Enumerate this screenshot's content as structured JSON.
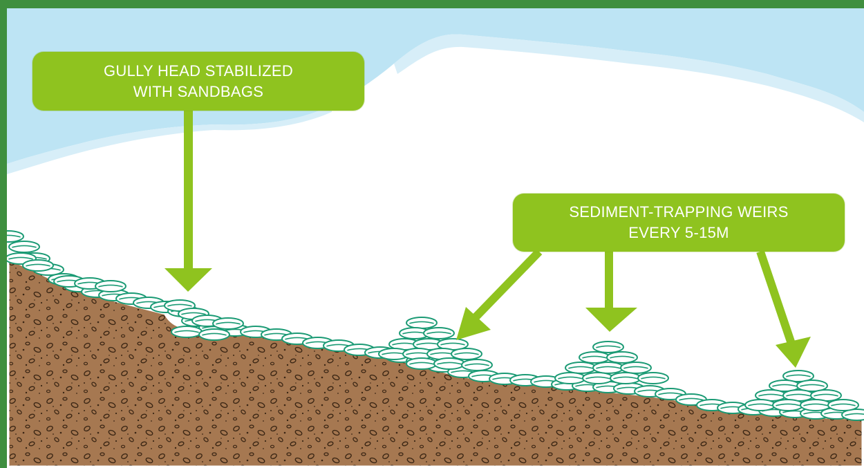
{
  "colors": {
    "frame": "#3f8f3f",
    "sky": "#bde4f4",
    "soil": "#a67851",
    "soil_texture": "#3b2614",
    "sandbag": "#1a9a74",
    "callout": "#8fc31f",
    "arrow": "#8fc31f",
    "callout_text": "#ffffff"
  },
  "callouts": {
    "gully_head": {
      "line1": "GULLY HEAD STABILIZED",
      "line2": "WITH SANDBAGS"
    },
    "weirs": {
      "line1": "SEDIMENT-TRAPPING WEIRS",
      "line2": "EVERY 5-15M"
    }
  },
  "icons": {
    "sandbag": "sandbag-icon",
    "arrow": "arrow-down-icon"
  }
}
